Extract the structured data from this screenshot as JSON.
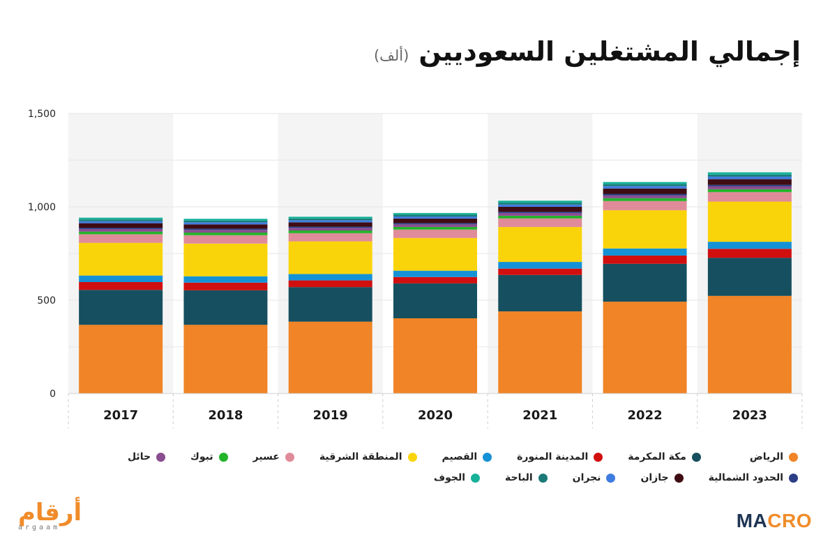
{
  "header": {
    "title": "إجمالي المشتغلين السعوديين",
    "unit": "(ألف)"
  },
  "logos": {
    "argaam_ar": "أرقام",
    "argaam_en": "argaam",
    "macro_a": "MA",
    "macro_b": "CRO"
  },
  "colors": {
    "orange": "#f08426",
    "teal_dark": "#164f5f",
    "red": "#d10f0f",
    "blue": "#1592d6",
    "yellow": "#fad40a",
    "pink": "#e08b99",
    "green": "#23b42a",
    "purple": "#8a4d8f",
    "navy": "#2c3e86",
    "maroon": "#3e0c12",
    "bright_blue": "#3f7ce0",
    "teal": "#1c7a78",
    "mint": "#17b19a"
  },
  "chart_data": {
    "type": "bar",
    "stacked": true,
    "categories": [
      "2017",
      "2018",
      "2019",
      "2020",
      "2021",
      "2022",
      "2023"
    ],
    "ylim": [
      0,
      1500
    ],
    "yticks": [
      0,
      500,
      1000,
      1500
    ],
    "ytick_labels": [
      "0",
      "500",
      "1,000",
      "1,500"
    ],
    "grid": true,
    "legend_position": "bottom",
    "series": [
      {
        "name": "الرياض",
        "color": "#f08426",
        "values": [
          368,
          368,
          385,
          403,
          440,
          492,
          523
        ]
      },
      {
        "name": "مكة المكرمة",
        "color": "#164f5f",
        "values": [
          187,
          185,
          185,
          187,
          195,
          203,
          204
        ]
      },
      {
        "name": "المدينة المنورة",
        "color": "#d10f0f",
        "values": [
          42,
          41,
          36,
          34,
          34,
          44,
          48
        ]
      },
      {
        "name": "القصيم",
        "color": "#1592d6",
        "values": [
          35,
          34,
          34,
          34,
          36,
          38,
          38
        ]
      },
      {
        "name": "المنطقة الشرقية",
        "color": "#fad40a",
        "values": [
          175,
          175,
          175,
          175,
          187,
          205,
          215
        ]
      },
      {
        "name": "عسير",
        "color": "#e08b99",
        "values": [
          46,
          45,
          44,
          45,
          46,
          49,
          51
        ]
      },
      {
        "name": "تبوك",
        "color": "#23b42a",
        "values": [
          14,
          14,
          14,
          14,
          14,
          15,
          15
        ]
      },
      {
        "name": "حائل",
        "color": "#8a4d8f",
        "values": [
          14,
          14,
          14,
          14,
          15,
          15,
          16
        ]
      },
      {
        "name": "الحدود الشمالية",
        "color": "#2c3e86",
        "values": [
          7,
          7,
          7,
          7,
          7,
          8,
          8
        ]
      },
      {
        "name": "جازان",
        "color": "#3e0c12",
        "values": [
          24,
          23,
          23,
          24,
          26,
          29,
          30
        ]
      },
      {
        "name": "نجران",
        "color": "#3f7ce0",
        "values": [
          11,
          11,
          11,
          11,
          12,
          13,
          14
        ]
      },
      {
        "name": "الباحة",
        "color": "#1c7a78",
        "values": [
          9,
          9,
          9,
          9,
          10,
          10,
          10
        ]
      },
      {
        "name": "الجوف",
        "color": "#17b19a",
        "values": [
          10,
          10,
          10,
          10,
          11,
          12,
          13
        ]
      }
    ]
  }
}
